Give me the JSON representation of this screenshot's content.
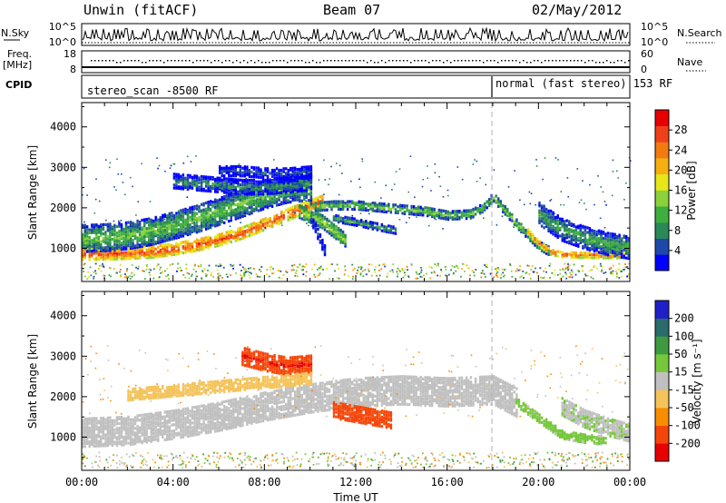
{
  "header": {
    "radar": "Unwin (fitACF)",
    "beam": "Beam 07",
    "date": "02/May/2012"
  },
  "summary": {
    "nsky_label": "N.Sky",
    "nsearch_label": "N.Search",
    "noise_ticks": [
      "10^5",
      "10^0"
    ],
    "freq_label": "Freq.",
    "freq_unit": "[MHz]",
    "freq_ticks": [
      "18",
      "8"
    ],
    "nave_label": "Nave",
    "nave_ticks": [
      "60",
      "0"
    ],
    "cpid_label": "CPID",
    "cpid_left": "stereo_scan -8500 RF",
    "cpid_right": "normal (fast stereo) 153 RF"
  },
  "colors": {
    "power": [
      "#0000ff",
      "#1f49a8",
      "#2a8a55",
      "#3fae3f",
      "#8ad13a",
      "#e6e61a",
      "#f5b010",
      "#f37a10",
      "#f0401a",
      "#e80000"
    ],
    "velocity": [
      "#e80000",
      "#f5460a",
      "#f88d00",
      "#f4c35a",
      "#c0c0c0",
      "#c0c0c0",
      "#76c83a",
      "#3e9a3e",
      "#2a6b6b",
      "#2020c8"
    ]
  },
  "chart_data": [
    {
      "type": "heatmap",
      "panel": "power",
      "ylabel": "Slant Range [km]",
      "ylim": [
        180,
        4600
      ],
      "y_ticks": [
        1000,
        2000,
        3000,
        4000
      ],
      "colorbar": {
        "label": "Power [dB]",
        "ticks": [
          4,
          8,
          12,
          16,
          20,
          24,
          28
        ],
        "range": [
          0,
          32
        ]
      },
      "bands": [
        {
          "x": [
            0.0,
            1.0,
            2.0,
            3.0,
            4.0,
            5.0,
            6.0,
            7.0,
            8.0,
            9.0,
            10.0,
            10.5
          ],
          "y": [
            900,
            900,
            920,
            950,
            1020,
            1120,
            1250,
            1420,
            1640,
            1880,
            2100,
            2200
          ],
          "w": 280,
          "v": 27
        },
        {
          "x": [
            0.0,
            1.0,
            2.0,
            3.0,
            4.0,
            5.0,
            6.0,
            7.0,
            8.0,
            9.0,
            10.0
          ],
          "y": [
            1280,
            1300,
            1350,
            1450,
            1600,
            1760,
            1950,
            2150,
            2350,
            2500,
            2550
          ],
          "w": 650,
          "v": 13
        },
        {
          "x": [
            4.0,
            5.0,
            6.0,
            7.0,
            8.0,
            9.0,
            10.0
          ],
          "y": [
            2700,
            2650,
            2600,
            2550,
            2550,
            2600,
            2650
          ],
          "w": 350,
          "v": 9
        },
        {
          "x": [
            6.0,
            7.0,
            8.0,
            9.0,
            10.0
          ],
          "y": [
            2950,
            2950,
            2900,
            2900,
            2950
          ],
          "w": 250,
          "v": 6
        },
        {
          "x": [
            10.0,
            11.0,
            12.0,
            13.0,
            14.0,
            15.0,
            16.0,
            17.0,
            17.5,
            18.0,
            19.0,
            20.0,
            20.5
          ],
          "y": [
            2050,
            2100,
            2100,
            2050,
            2000,
            1950,
            1850,
            1880,
            2030,
            2300,
            1650,
            1100,
            950
          ],
          "w": 200,
          "v": 14
        },
        {
          "x": [
            11.0,
            12.0,
            13.0,
            13.7
          ],
          "y": [
            1780,
            1680,
            1560,
            1480
          ],
          "w": 160,
          "v": 11
        },
        {
          "x": [
            9.5,
            10.5,
            11.5
          ],
          "y": [
            1950,
            1700,
            1250
          ],
          "w": 320,
          "v": 16
        },
        {
          "x": [
            10.0,
            10.6
          ],
          "y": [
            1800,
            1000
          ],
          "w": 250,
          "v": 7
        },
        {
          "x": [
            19.5,
            20.0,
            20.5,
            21.0,
            22.0,
            23.0,
            24.0
          ],
          "y": [
            1450,
            1150,
            950,
            880,
            870,
            860,
            870
          ],
          "w": 130,
          "v": 26
        },
        {
          "x": [
            20.0,
            21.0,
            22.0,
            23.0,
            24.0
          ],
          "y": [
            1900,
            1500,
            1300,
            1150,
            1050
          ],
          "w": 550,
          "v": 11
        }
      ]
    },
    {
      "type": "heatmap",
      "panel": "velocity",
      "xlabel": "Time UT",
      "ylabel": "Slant Range [km]",
      "x_ticks": [
        "00:00",
        "04:00",
        "08:00",
        "12:00",
        "16:00",
        "20:00",
        "00:00"
      ],
      "ylim": [
        180,
        4600
      ],
      "y_ticks": [
        1000,
        2000,
        3000,
        4000
      ],
      "colorbar": {
        "label": "Velocity [m s⁻¹]",
        "ticks": [
          -200,
          -100,
          -50,
          -15,
          15,
          50,
          100,
          200
        ],
        "range": [
          -250,
          250
        ]
      },
      "bands": [
        {
          "x": [
            0.0,
            2.0,
            4.0,
            6.0,
            8.0,
            10.0,
            12.0,
            14.0,
            16.0,
            18.0,
            19.0
          ],
          "y": [
            1150,
            1200,
            1350,
            1550,
            1800,
            2000,
            2150,
            2200,
            2150,
            2200,
            1900
          ],
          "w": 700,
          "v": 0
        },
        {
          "x": [
            7.0,
            8.0,
            9.0,
            10.0
          ],
          "y": [
            3050,
            2900,
            2800,
            2850
          ],
          "w": 450,
          "v": -210
        },
        {
          "x": [
            11.0,
            12.0,
            13.0,
            13.5
          ],
          "y": [
            1700,
            1600,
            1500,
            1450
          ],
          "w": 380,
          "v": -180
        },
        {
          "x": [
            2.0,
            4.0,
            6.0,
            8.0,
            10.0
          ],
          "y": [
            2100,
            2200,
            2300,
            2400,
            2500
          ],
          "w": 300,
          "v": -40
        },
        {
          "x": [
            19.0,
            20.0,
            20.5,
            21.0,
            22.0,
            23.0
          ],
          "y": [
            1900,
            1500,
            1300,
            1100,
            1000,
            950
          ],
          "w": 200,
          "v": 30
        },
        {
          "x": [
            21.0,
            22.0,
            23.0,
            24.0
          ],
          "y": [
            1800,
            1500,
            1300,
            1150
          ],
          "w": 450,
          "v": 10
        }
      ]
    }
  ]
}
